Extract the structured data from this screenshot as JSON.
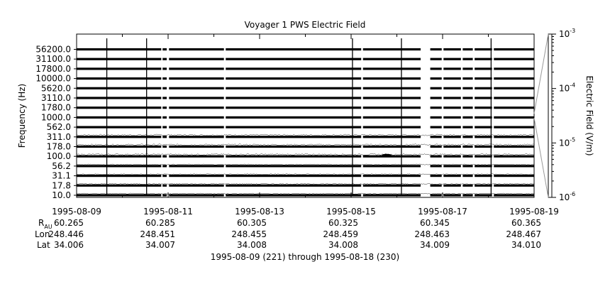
{
  "chart_data": {
    "type": "heatmap",
    "title": "Voyager 1 PWS Electric Field",
    "ylabel": "Frequency (Hz)",
    "colorbar_label": "Electric Field (V/m)",
    "colorbar_range": [
      1e-06,
      0.001
    ],
    "colorbar_ticks": [
      {
        "value": 0.001,
        "base": "10",
        "exp": "-3"
      },
      {
        "value": 0.0001,
        "base": "10",
        "exp": "-4"
      },
      {
        "value": 1e-05,
        "base": "10",
        "exp": "-5"
      },
      {
        "value": 1e-06,
        "base": "10",
        "exp": "-6"
      }
    ],
    "colorbar_log": true,
    "frequency_channels": [
      "56200.0",
      "31100.0",
      "17800.0",
      "10000.0",
      "5620.0",
      "3110.0",
      "1780.0",
      "1000.0",
      "562.0",
      "311.0",
      "178.0",
      "100.0",
      "56.2",
      "31.1",
      "17.8",
      "10.0"
    ],
    "x_range": [
      "1995-08-09",
      "1995-08-19"
    ],
    "x_ticks": [
      "1995-08-09",
      "1995-08-11",
      "1995-08-13",
      "1995-08-15",
      "1995-08-17",
      "1995-08-19"
    ],
    "data_gaps_days": [
      [
        1.85,
        1.88
      ],
      [
        1.97,
        2.02
      ],
      [
        3.22,
        3.26
      ],
      [
        6.22,
        6.26
      ],
      [
        7.52,
        7.73
      ],
      [
        7.98,
        8.02
      ],
      [
        8.4,
        8.44
      ],
      [
        8.66,
        8.7
      ],
      [
        9.08,
        9.12
      ]
    ],
    "impulses_days": [
      0.66,
      1.53,
      6.03,
      7.1,
      9.06
    ],
    "ancillary": {
      "labels": {
        "r": "R",
        "r_sub": "AU",
        "lon": "Lon",
        "lat": "Lat"
      },
      "columns": [
        {
          "r": "60.265",
          "lon": "248.446",
          "lat": "34.006"
        },
        {
          "r": "60.285",
          "lon": "248.451",
          "lat": "34.007"
        },
        {
          "r": "60.305",
          "lon": "248.455",
          "lat": "34.008"
        },
        {
          "r": "60.325",
          "lon": "248.459",
          "lat": "34.008"
        },
        {
          "r": "60.345",
          "lon": "248.463",
          "lat": "34.009"
        },
        {
          "r": "60.365",
          "lon": "248.467",
          "lat": "34.010"
        }
      ]
    },
    "footer": "1995-08-09 (221) through 1995-08-18 (230)"
  }
}
